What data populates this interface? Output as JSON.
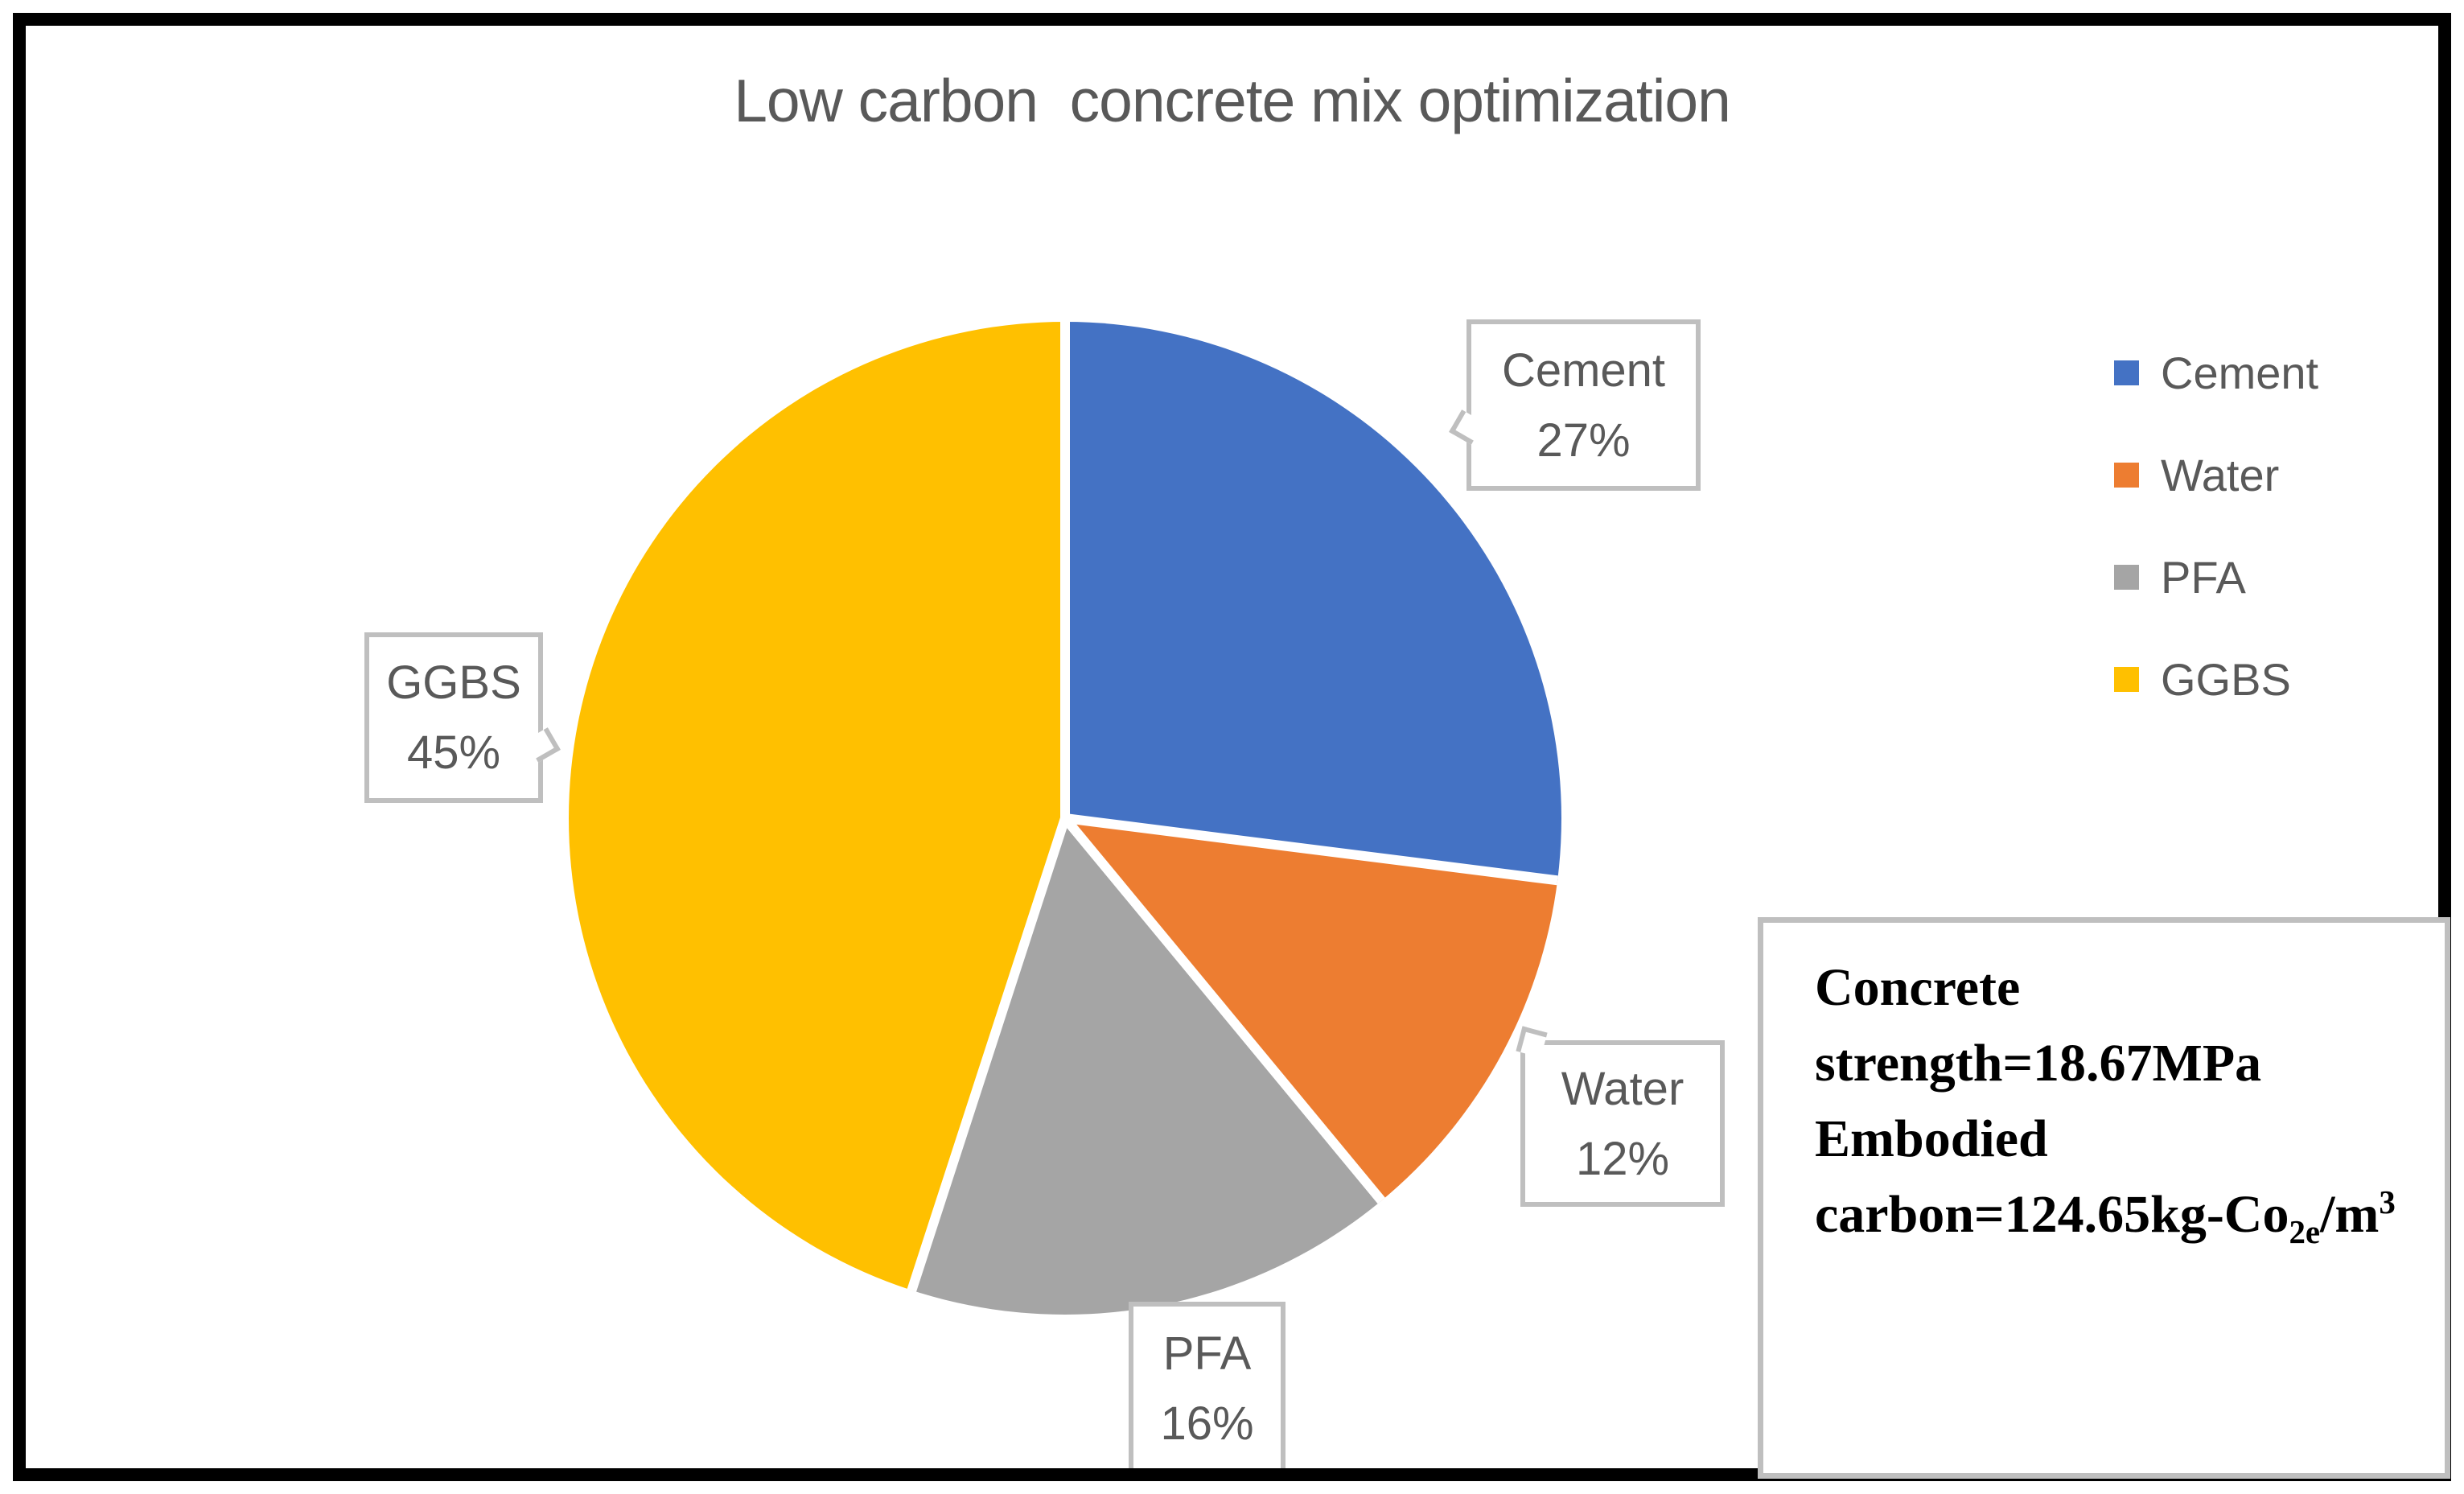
{
  "chart_data": {
    "type": "pie",
    "title": "Low carbon  concrete mix optimization",
    "categories": [
      "Cement",
      "Water",
      "PFA",
      "GGBS"
    ],
    "values": [
      27,
      12,
      16,
      45
    ],
    "unit": "%",
    "colors": [
      "#4472C4",
      "#ED7D31",
      "#A5A5A5",
      "#FFC000"
    ],
    "start_angle_deg": 0,
    "direction": "clockwise",
    "slice_border_color": "#FFFFFF",
    "legend_position": "right",
    "data_labels": [
      "Cement 27%",
      "Water 12%",
      "PFA 16%",
      "GGBS 45%"
    ]
  },
  "legend": {
    "items": [
      {
        "label": "Cement",
        "color": "#4472C4"
      },
      {
        "label": "Water",
        "color": "#ED7D31"
      },
      {
        "label": "PFA",
        "color": "#A5A5A5"
      },
      {
        "label": "GGBS",
        "color": "#FFC000"
      }
    ]
  },
  "callouts": [
    {
      "name": "Cement",
      "value": "27%"
    },
    {
      "name": "Water",
      "value": "12%"
    },
    {
      "name": "PFA",
      "value": "16%"
    },
    {
      "name": "GGBS",
      "value": "45%"
    }
  ],
  "annotation": {
    "line1": "Concrete",
    "line2": "strength=18.67MPa",
    "line3": "Embodied",
    "line4_prefix": "carbon=124.65kg-Co",
    "line4_sub": "2e",
    "line4_mid": "/m",
    "line4_sup": "3"
  },
  "colors": {
    "title_text": "#595959",
    "label_text": "#595959",
    "callout_border": "#BFBFBF",
    "frame": "#000000",
    "annotation_text": "#000000"
  }
}
